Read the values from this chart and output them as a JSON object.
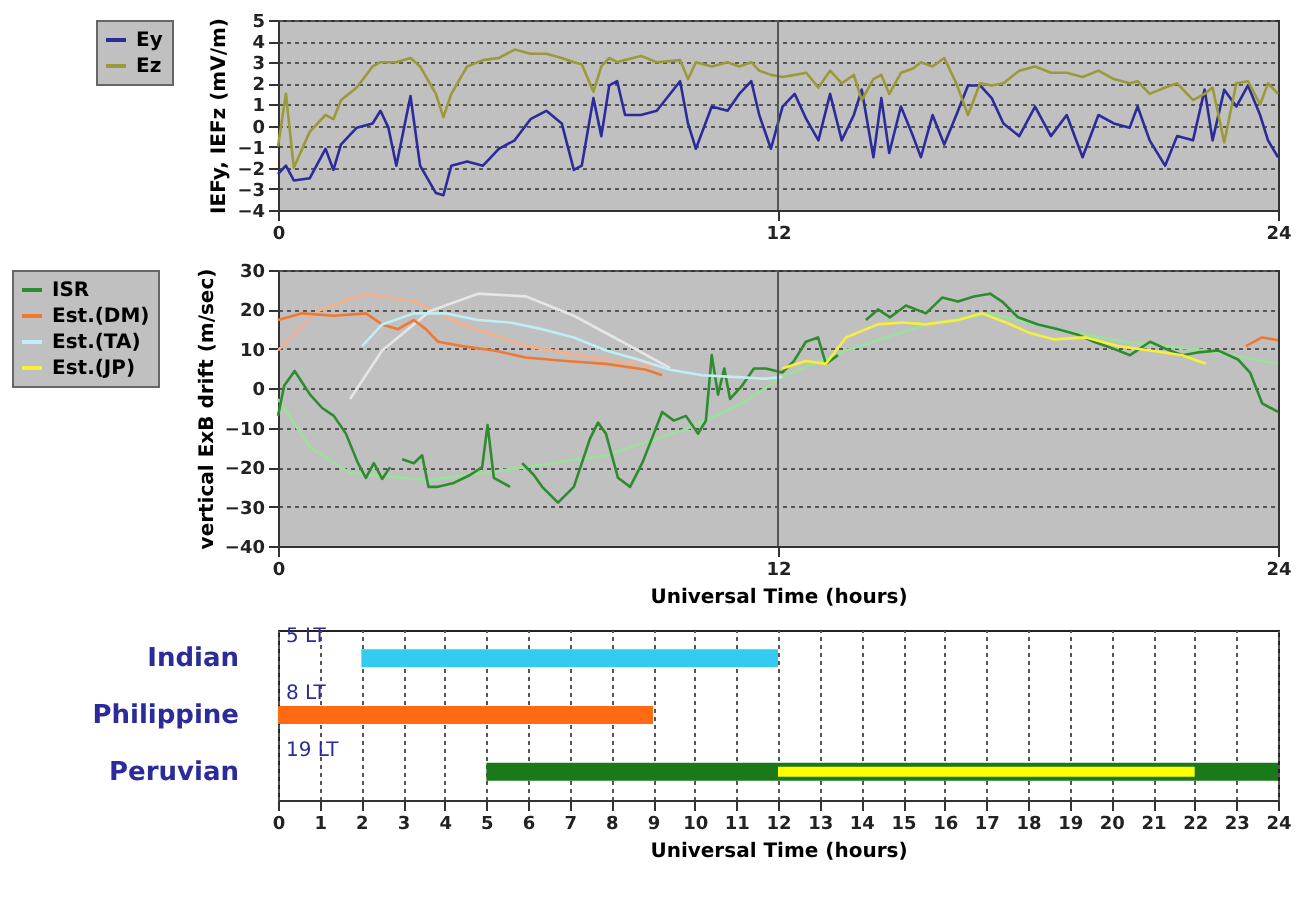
{
  "chart_data": [
    {
      "type": "line",
      "ylabel": "IEFy, IEFz (mV/m)",
      "xlim": [
        0,
        24
      ],
      "xticks": [
        0,
        12,
        24
      ],
      "ylim": [
        -4,
        5
      ],
      "yticks": [
        -4,
        -3,
        -2,
        -1,
        0,
        1,
        2,
        3,
        4,
        5
      ],
      "grid": "y",
      "ref_lines": [
        {
          "axis": "x",
          "value": 12
        }
      ],
      "legend": "left",
      "x": [
        0,
        0.19,
        0.38,
        0.76,
        1.14,
        1.33,
        1.51,
        1.89,
        2.27,
        2.46,
        2.65,
        2.84,
        3.18,
        3.41,
        3.79,
        3.97,
        4.16,
        4.54,
        4.92,
        5.3,
        5.68,
        6.06,
        6.44,
        6.81,
        7.1,
        7.29,
        7.57,
        7.76,
        7.95,
        8.14,
        8.33,
        8.71,
        9.09,
        9.65,
        9.84,
        10.03,
        10.41,
        10.79,
        11.07,
        11.36,
        11.55,
        11.83,
        12.11,
        12.4,
        12.68,
        12.97,
        13.25,
        13.53,
        13.82,
        14.01,
        14.29,
        14.48,
        14.67,
        14.95,
        15.24,
        15.43,
        15.71,
        15.99,
        16.28,
        16.56,
        16.85,
        17.13,
        17.41,
        17.79,
        18.17,
        18.55,
        18.93,
        19.31,
        19.69,
        20.06,
        20.44,
        20.63,
        20.92,
        21.29,
        21.58,
        21.96,
        22.24,
        22.43,
        22.71,
        23.0,
        23.28,
        23.57,
        23.76,
        24
      ],
      "series": [
        {
          "name": "Ey",
          "color": "#2b2b9a",
          "values": [
            -2.3,
            -1.9,
            -2.6,
            -2.5,
            -1.1,
            -2.1,
            -0.9,
            -0.1,
            0.1,
            0.7,
            -0.1,
            -1.9,
            1.4,
            -1.9,
            -3.2,
            -3.3,
            -1.9,
            -1.7,
            -1.9,
            -1.1,
            -0.7,
            0.3,
            0.7,
            0.1,
            -2.1,
            -1.9,
            1.3,
            -0.5,
            1.9,
            2.1,
            0.5,
            0.5,
            0.7,
            2.1,
            0.1,
            -1.1,
            0.9,
            0.7,
            1.5,
            2.1,
            0.5,
            -1.1,
            0.9,
            1.5,
            0.3,
            -0.7,
            1.5,
            -0.7,
            0.5,
            1.7,
            -1.5,
            1.3,
            -1.3,
            0.9,
            -0.5,
            -1.5,
            0.5,
            -0.9,
            0.5,
            1.9,
            1.9,
            1.3,
            0.1,
            -0.5,
            0.9,
            -0.5,
            0.5,
            -1.5,
            0.5,
            0.1,
            -0.1,
            0.9,
            -0.7,
            -1.9,
            -0.5,
            -0.7,
            1.7,
            -0.7,
            1.7,
            0.9,
            1.9,
            0.5,
            -0.7,
            -1.5
          ]
        },
        {
          "name": "Ez",
          "color": "#9a9a3a",
          "values": [
            -1.0,
            1.5,
            -2.0,
            -0.3,
            0.5,
            0.3,
            1.2,
            1.8,
            2.8,
            3.0,
            3.0,
            3.0,
            3.2,
            2.8,
            1.5,
            0.4,
            1.5,
            2.8,
            3.1,
            3.2,
            3.6,
            3.4,
            3.4,
            3.2,
            3.0,
            2.9,
            1.6,
            2.8,
            3.2,
            3.0,
            3.1,
            3.3,
            3.0,
            3.1,
            2.2,
            3.0,
            2.8,
            3.0,
            2.8,
            3.0,
            2.6,
            2.4,
            2.3,
            2.4,
            2.5,
            1.8,
            2.6,
            2.0,
            2.4,
            1.2,
            2.2,
            2.4,
            1.5,
            2.5,
            2.7,
            3.0,
            2.8,
            3.2,
            2.0,
            0.5,
            2.0,
            1.9,
            2.0,
            2.6,
            2.8,
            2.5,
            2.5,
            2.3,
            2.6,
            2.2,
            2.0,
            2.1,
            1.5,
            1.8,
            2.0,
            1.2,
            1.5,
            1.8,
            -0.8,
            2.0,
            2.1,
            1.0,
            2.0,
            1.5
          ]
        }
      ]
    },
    {
      "type": "line",
      "xlabel": "Universal Time (hours)",
      "ylabel": "vertical ExB drift (m/sec)",
      "xlim": [
        0,
        24
      ],
      "xticks": [
        0,
        12,
        24
      ],
      "ylim": [
        -40,
        30
      ],
      "yticks": [
        -40,
        -30,
        -20,
        -10,
        0,
        10,
        20,
        30
      ],
      "grid": "y",
      "ref_lines": [
        {
          "axis": "x",
          "value": 12
        }
      ],
      "legend": "left",
      "series": [
        {
          "color": "#9be09b",
          "x": [
            0,
            0.77,
            1.73,
            3.65,
            5.95,
            7.87,
            9.79,
            11.14,
            12.1,
            13.63,
            15.55,
            17.09,
            18.63,
            20.35,
            22.27,
            24
          ],
          "values": [
            -2.7,
            -15,
            -21.5,
            -23.3,
            -20,
            -17,
            -10.4,
            -3.8,
            2.9,
            9.6,
            16.2,
            19,
            15,
            11.8,
            9.6,
            6.2
          ]
        },
        {
          "color": "#f4b08a",
          "x": [
            0,
            0.96,
            2.11,
            3.26,
            4.42,
            5.95,
            7.87,
            9.02
          ],
          "values": [
            9.6,
            19.6,
            24,
            22,
            16.2,
            10.7,
            7.3,
            5.6
          ]
        },
        {
          "color": "#e6e6e6",
          "x": [
            1.73,
            2.5,
            3.65,
            4.8,
            5.95,
            7.1,
            8.26,
            9.41
          ],
          "values": [
            -2.7,
            9.6,
            19.6,
            24,
            23.3,
            18.4,
            11.8,
            5.1
          ]
        },
        {
          "name": "ISR",
          "color": "#2e8b2e",
          "x": [
            0,
            0.15,
            0.4,
            0.77,
            1.06,
            1.34,
            1.63,
            1.92,
            2.11,
            2.3,
            2.5,
            2.69,
            2.85,
            2.98,
            3.26,
            3.46,
            3.61,
            3.84,
            4.22,
            4.61,
            4.9,
            5.03,
            5.18,
            5.57,
            5.7,
            5.86,
            6.14,
            6.34,
            6.72,
            7.1,
            7.49,
            7.68,
            7.87,
            8.16,
            8.45,
            8.74,
            9.02,
            9.22,
            9.5,
            9.79,
            10.08,
            10.27,
            10.41,
            10.56,
            10.71,
            10.85,
            11.14,
            11.42,
            11.71,
            12.1,
            12.38,
            12.67,
            12.96,
            13.15,
            13.44,
            13.8,
            14.11,
            14.4,
            14.69,
            15.07,
            15.55,
            15.94,
            16.32,
            16.7,
            17.09,
            17.38,
            17.76,
            18.24,
            18.72,
            19.2,
            19.58,
            20.06,
            20.45,
            20.93,
            21.31,
            21.7,
            22.08,
            22.56,
            23.04,
            23.33,
            23.62,
            24
          ],
          "values": [
            -7,
            0.7,
            4.4,
            -1.6,
            -5,
            -7,
            -11.5,
            -19,
            -22.7,
            -19,
            -23,
            -20,
            null,
            -18,
            -19,
            -17,
            -25,
            -25,
            -24,
            -22,
            -20,
            -9.3,
            -22.7,
            -25,
            null,
            -19,
            -22,
            -25,
            -29,
            -25,
            -12.7,
            -8.7,
            -11.5,
            -22.7,
            -25,
            -19,
            -11.5,
            -6,
            -8.2,
            -7,
            -11.5,
            -8.2,
            8.4,
            -1.6,
            5,
            -2.7,
            0.7,
            5,
            5,
            4,
            6.9,
            11.8,
            12.9,
            6.2,
            8.4,
            null,
            17.3,
            20,
            18,
            21,
            19,
            23,
            22,
            23.3,
            24,
            22,
            18,
            16.2,
            15,
            13.6,
            11.8,
            10,
            8.4,
            11.8,
            10,
            8.4,
            9.1,
            9.6,
            7.3,
            4,
            -3.8,
            -6
          ]
        },
        {
          "name": "Est.(DM)",
          "color": "#f07830",
          "x": [
            0,
            0.58,
            1.34,
            2.11,
            2.5,
            2.88,
            3.26,
            3.55,
            3.84,
            4.42,
            5.18,
            5.95,
            6.91,
            7.87,
            8.83,
            9.22
          ],
          "values": [
            17.3,
            19,
            18.4,
            19,
            16.2,
            15,
            17.3,
            15,
            11.8,
            10.7,
            9.6,
            7.8,
            6.9,
            6.2,
            4.7,
            3.3
          ]
        },
        {
          "color": "#f07830",
          "x": [
            23.23,
            23.62,
            24
          ],
          "values": [
            10.7,
            12.9,
            12.2
          ]
        },
        {
          "name": "Est.(TA)",
          "color": "#bfeff5",
          "x": [
            2.02,
            2.5,
            3.26,
            4.03,
            4.8,
            5.57,
            6.34,
            7.1,
            7.87,
            8.64,
            9.41,
            10.18,
            10.94,
            11.71,
            12.1
          ],
          "values": [
            10.7,
            16.2,
            19,
            19,
            17.3,
            16.7,
            15,
            12.9,
            9.6,
            7.3,
            4.7,
            3.3,
            2.9,
            2.4,
            2.9
          ]
        },
        {
          "name": "Est.(JP)",
          "color": "#f5f03a",
          "x": [
            12.1,
            12.67,
            13.15,
            13.63,
            14.4,
            14.98,
            15.55,
            16.32,
            16.9,
            17.47,
            18.05,
            18.63,
            19.39,
            20.16,
            20.93,
            21.7,
            22.27
          ],
          "values": [
            5,
            6.9,
            6.2,
            12.9,
            16.2,
            16.7,
            16.2,
            17.3,
            19,
            16.7,
            14,
            12.4,
            12.9,
            10.7,
            9.6,
            8.4,
            6.2
          ]
        }
      ]
    },
    {
      "type": "bar",
      "orientation": "horizontal",
      "xlabel": "Universal Time (hours)",
      "categories": [
        "Indian",
        "Philippine",
        "Peruvian"
      ],
      "xlim": [
        0,
        24
      ],
      "xticks": [
        0,
        1,
        2,
        3,
        4,
        5,
        6,
        7,
        8,
        9,
        10,
        11,
        12,
        13,
        14,
        15,
        16,
        17,
        18,
        19,
        20,
        21,
        22,
        23,
        24
      ],
      "grid": "x",
      "series": [
        {
          "color": "#33ccf0",
          "base": [
            2,
            null,
            null
          ],
          "values": [
            10,
            null,
            null
          ]
        },
        {
          "color": "#ff6a13",
          "base": [
            null,
            0,
            null
          ],
          "values": [
            null,
            9,
            null
          ]
        },
        {
          "color": "#1a7a1a",
          "base": [
            null,
            null,
            5
          ],
          "values": [
            null,
            null,
            19
          ]
        },
        {
          "color": "#ffff00",
          "base": [
            null,
            null,
            12
          ],
          "values": [
            null,
            null,
            10
          ]
        }
      ],
      "annotations": [
        "5 LT",
        "8 LT",
        "19 LT"
      ]
    }
  ]
}
